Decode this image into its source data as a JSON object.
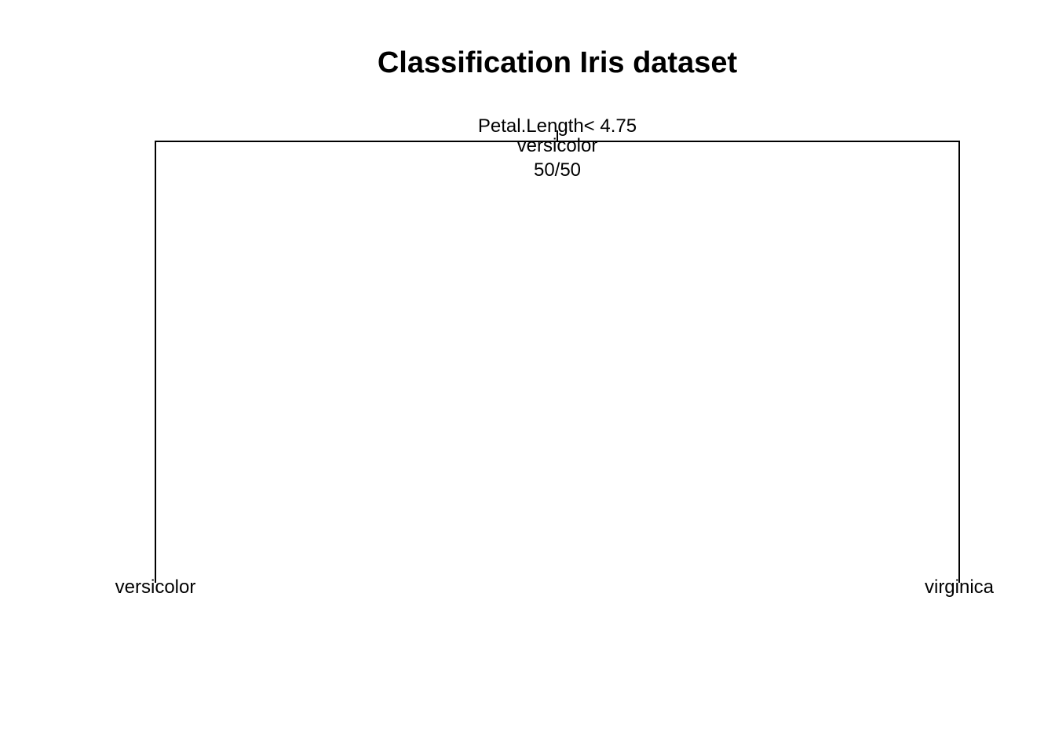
{
  "title": "Classification Iris dataset",
  "tree": {
    "root": {
      "split": "Petal.Length< 4.75",
      "class": "versicolor",
      "counts": "50/50"
    },
    "leaves": [
      {
        "class": "versicolor"
      },
      {
        "class": "virginica"
      }
    ]
  },
  "colors": {
    "background": "#ffffff",
    "ink": "#000000"
  }
}
